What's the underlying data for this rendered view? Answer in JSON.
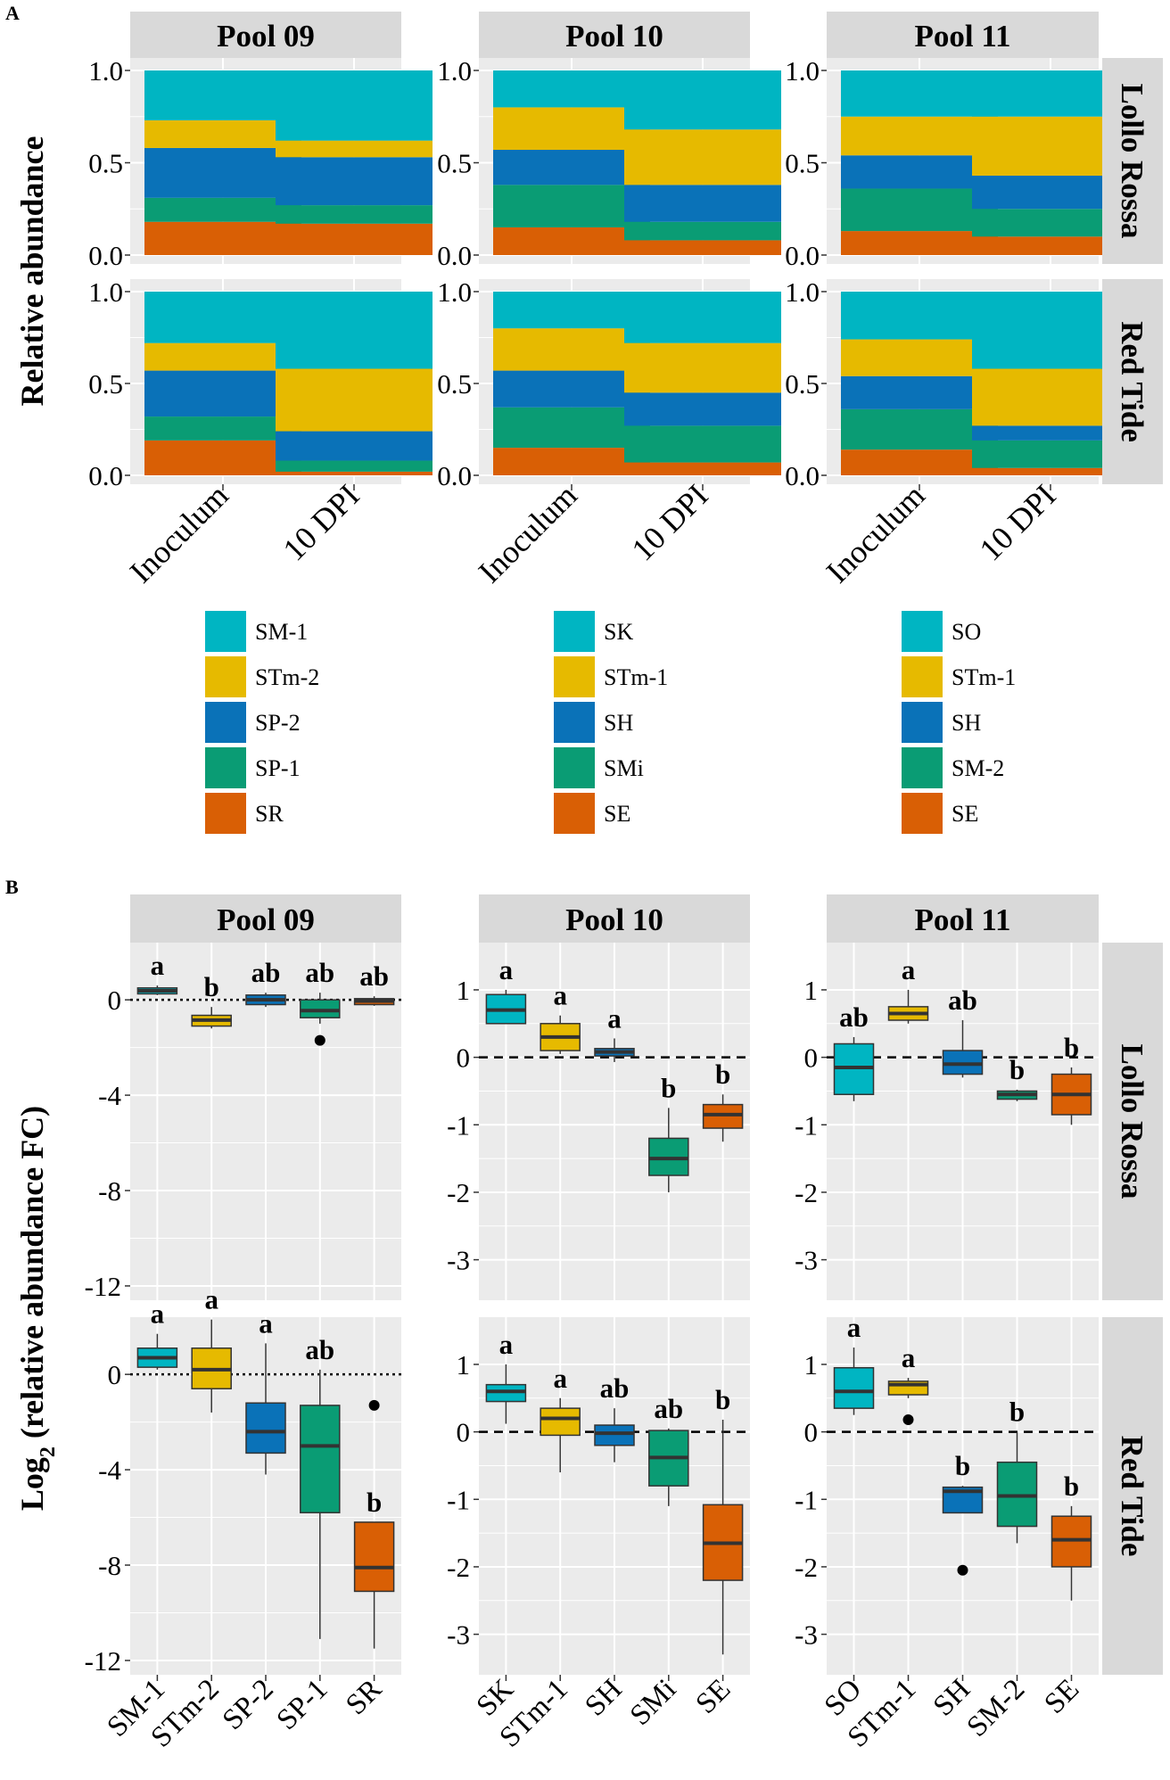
{
  "figure": {
    "panel_a_letter": "A",
    "panel_b_letter": "B"
  },
  "colors": {
    "teal": "#00B5C2",
    "yellow": "#E6BA00",
    "blue": "#0A72B8",
    "green": "#0A9C74",
    "orange": "#D95F05",
    "panel_bg": "#EBEBEB",
    "strip_bg": "#D9D9D9",
    "grid": "#FFFFFF"
  },
  "chart_data": [
    {
      "type": "bar",
      "stacked": true,
      "title": "A",
      "ylabel": "Relative abundance",
      "ylim": [
        0,
        1
      ],
      "yticks": [
        "0.0",
        "0.5",
        "1.0"
      ],
      "categories": [
        "Inoculum",
        "10 DPI"
      ],
      "row_strips": [
        "Lollo Rossa",
        "Red Tide"
      ],
      "pools": [
        {
          "name": "Pool 09",
          "legend": [
            {
              "label": "SM-1",
              "color": "#00B5C2"
            },
            {
              "label": "STm-2",
              "color": "#E6BA00"
            },
            {
              "label": "SP-2",
              "color": "#0A72B8"
            },
            {
              "label": "SP-1",
              "color": "#0A9C74"
            },
            {
              "label": "SR",
              "color": "#D95F05"
            }
          ],
          "rows": [
            {
              "stacks": [
                [
                  0.18,
                  0.13,
                  0.27,
                  0.15,
                  0.27
                ],
                [
                  0.17,
                  0.1,
                  0.26,
                  0.09,
                  0.38
                ]
              ]
            },
            {
              "stacks": [
                [
                  0.19,
                  0.13,
                  0.25,
                  0.15,
                  0.28
                ],
                [
                  0.02,
                  0.06,
                  0.16,
                  0.34,
                  0.42
                ]
              ]
            }
          ]
        },
        {
          "name": "Pool 10",
          "legend": [
            {
              "label": "SK",
              "color": "#00B5C2"
            },
            {
              "label": "STm-1",
              "color": "#E6BA00"
            },
            {
              "label": "SH",
              "color": "#0A72B8"
            },
            {
              "label": "SMi",
              "color": "#0A9C74"
            },
            {
              "label": "SE",
              "color": "#D95F05"
            }
          ],
          "rows": [
            {
              "stacks": [
                [
                  0.15,
                  0.23,
                  0.19,
                  0.23,
                  0.2
                ],
                [
                  0.08,
                  0.1,
                  0.2,
                  0.3,
                  0.32
                ]
              ]
            },
            {
              "stacks": [
                [
                  0.15,
                  0.22,
                  0.2,
                  0.23,
                  0.2
                ],
                [
                  0.07,
                  0.2,
                  0.18,
                  0.27,
                  0.28
                ]
              ]
            }
          ]
        },
        {
          "name": "Pool 11",
          "legend": [
            {
              "label": "SO",
              "color": "#00B5C2"
            },
            {
              "label": "STm-1",
              "color": "#E6BA00"
            },
            {
              "label": "SH",
              "color": "#0A72B8"
            },
            {
              "label": "SM-2",
              "color": "#0A9C74"
            },
            {
              "label": "SE",
              "color": "#D95F05"
            }
          ],
          "rows": [
            {
              "stacks": [
                [
                  0.13,
                  0.23,
                  0.18,
                  0.21,
                  0.25
                ],
                [
                  0.1,
                  0.15,
                  0.18,
                  0.32,
                  0.25
                ]
              ]
            },
            {
              "stacks": [
                [
                  0.14,
                  0.22,
                  0.18,
                  0.2,
                  0.26
                ],
                [
                  0.04,
                  0.15,
                  0.08,
                  0.31,
                  0.42
                ]
              ]
            }
          ]
        }
      ]
    },
    {
      "type": "box",
      "title": "B",
      "ylabel_main": "Log",
      "ylabel_sub": "2",
      "ylabel_rest": " (relative abundance FC)",
      "row_strips": [
        "Lollo Rossa",
        "Red Tide"
      ],
      "pools": [
        {
          "name": "Pool 09",
          "categories": [
            "SM-1",
            "STm-2",
            "SP-2",
            "SP-1",
            "SR"
          ],
          "ylim": [
            -12.6,
            2.4
          ],
          "yticks": [
            "-12",
            "-8",
            "-4",
            "0"
          ],
          "ytick_values": [
            -12,
            -8,
            -4,
            0
          ],
          "ref_line": "dotted",
          "rows": [
            {
              "boxes": [
                {
                  "whiskers": [
                    0.2,
                    0.6
                  ],
                  "q": [
                    0.25,
                    0.38,
                    0.5
                  ],
                  "outliers": [],
                  "label": "a"
                },
                {
                  "whiskers": [
                    -1.2,
                    -0.3
                  ],
                  "q": [
                    -1.1,
                    -0.85,
                    -0.65
                  ],
                  "outliers": [],
                  "label": "b"
                },
                {
                  "whiskers": [
                    -0.3,
                    0.3
                  ],
                  "q": [
                    -0.2,
                    0.0,
                    0.2
                  ],
                  "outliers": [],
                  "label": "ab"
                },
                {
                  "whiskers": [
                    -1.0,
                    0.3
                  ],
                  "q": [
                    -0.75,
                    -0.45,
                    0.0
                  ],
                  "outliers": [
                    -1.7
                  ],
                  "label": "ab"
                },
                {
                  "whiskers": [
                    -0.25,
                    0.15
                  ],
                  "q": [
                    -0.2,
                    -0.05,
                    0.05
                  ],
                  "outliers": [],
                  "label": "ab"
                }
              ]
            },
            {
              "boxes": [
                {
                  "whiskers": [
                    0.2,
                    1.7
                  ],
                  "q": [
                    0.3,
                    0.7,
                    1.1
                  ],
                  "outliers": [],
                  "label": "a"
                },
                {
                  "whiskers": [
                    -1.6,
                    2.3
                  ],
                  "q": [
                    -0.6,
                    0.2,
                    1.1
                  ],
                  "outliers": [],
                  "label": "a"
                },
                {
                  "whiskers": [
                    -4.2,
                    1.3
                  ],
                  "q": [
                    -3.3,
                    -2.4,
                    -1.2
                  ],
                  "outliers": [],
                  "label": "a"
                },
                {
                  "whiskers": [
                    -11.1,
                    0.2
                  ],
                  "q": [
                    -5.8,
                    -3.0,
                    -1.3
                  ],
                  "outliers": [],
                  "label": "ab"
                },
                {
                  "whiskers": [
                    -11.5,
                    -6.2
                  ],
                  "q": [
                    -9.1,
                    -8.1,
                    -6.2
                  ],
                  "outliers": [
                    -1.3
                  ],
                  "label": "b"
                }
              ]
            }
          ]
        },
        {
          "name": "Pool 10",
          "categories": [
            "SK",
            "STm-1",
            "SH",
            "SMi",
            "SE"
          ],
          "ylim": [
            -3.6,
            1.7
          ],
          "yticks": [
            "-3",
            "-2",
            "-1",
            "0",
            "1"
          ],
          "ytick_values": [
            -3,
            -2,
            -1,
            0,
            1
          ],
          "ref_line": "dashed",
          "rows": [
            {
              "boxes": [
                {
                  "whiskers": [
                    0.5,
                    1.0
                  ],
                  "q": [
                    0.5,
                    0.7,
                    0.93
                  ],
                  "outliers": [],
                  "label": "a"
                },
                {
                  "whiskers": [
                    0.05,
                    0.62
                  ],
                  "q": [
                    0.1,
                    0.3,
                    0.5
                  ],
                  "outliers": [],
                  "label": "a"
                },
                {
                  "whiskers": [
                    -0.07,
                    0.28
                  ],
                  "q": [
                    0.02,
                    0.08,
                    0.13
                  ],
                  "outliers": [],
                  "label": "a"
                },
                {
                  "whiskers": [
                    -2.0,
                    -0.75
                  ],
                  "q": [
                    -1.75,
                    -1.5,
                    -1.2
                  ],
                  "outliers": [],
                  "label": "b"
                },
                {
                  "whiskers": [
                    -1.25,
                    -0.55
                  ],
                  "q": [
                    -1.05,
                    -0.85,
                    -0.7
                  ],
                  "outliers": [],
                  "label": "b"
                }
              ]
            },
            {
              "boxes": [
                {
                  "whiskers": [
                    0.12,
                    1.0
                  ],
                  "q": [
                    0.45,
                    0.6,
                    0.7
                  ],
                  "outliers": [],
                  "label": "a"
                },
                {
                  "whiskers": [
                    -0.6,
                    0.5
                  ],
                  "q": [
                    -0.05,
                    0.2,
                    0.35
                  ],
                  "outliers": [],
                  "label": "a"
                },
                {
                  "whiskers": [
                    -0.45,
                    0.35
                  ],
                  "q": [
                    -0.2,
                    -0.02,
                    0.1
                  ],
                  "outliers": [],
                  "label": "ab"
                },
                {
                  "whiskers": [
                    -1.1,
                    0.05
                  ],
                  "q": [
                    -0.8,
                    -0.38,
                    0.02
                  ],
                  "outliers": [],
                  "label": "ab"
                },
                {
                  "whiskers": [
                    -3.3,
                    0.18
                  ],
                  "q": [
                    -2.2,
                    -1.65,
                    -1.08
                  ],
                  "outliers": [],
                  "label": "b"
                }
              ]
            }
          ]
        },
        {
          "name": "Pool 11",
          "categories": [
            "SO",
            "STm-1",
            "SH",
            "SM-2",
            "SE"
          ],
          "ylim": [
            -3.6,
            1.7
          ],
          "yticks": [
            "-3",
            "-2",
            "-1",
            "0",
            "1"
          ],
          "ytick_values": [
            -3,
            -2,
            -1,
            0,
            1
          ],
          "ref_line": "dashed",
          "rows": [
            {
              "boxes": [
                {
                  "whiskers": [
                    -0.65,
                    0.3
                  ],
                  "q": [
                    -0.55,
                    -0.15,
                    0.2
                  ],
                  "outliers": [],
                  "label": "ab"
                },
                {
                  "whiskers": [
                    0.5,
                    1.0
                  ],
                  "q": [
                    0.55,
                    0.65,
                    0.75
                  ],
                  "outliers": [],
                  "label": "a"
                },
                {
                  "whiskers": [
                    -0.3,
                    0.55
                  ],
                  "q": [
                    -0.25,
                    -0.1,
                    0.1
                  ],
                  "outliers": [],
                  "label": "ab"
                },
                {
                  "whiskers": [
                    -0.65,
                    -0.48
                  ],
                  "q": [
                    -0.62,
                    -0.55,
                    -0.5
                  ],
                  "outliers": [],
                  "label": "b"
                },
                {
                  "whiskers": [
                    -1.0,
                    -0.15
                  ],
                  "q": [
                    -0.85,
                    -0.55,
                    -0.25
                  ],
                  "outliers": [],
                  "label": "b"
                }
              ]
            },
            {
              "boxes": [
                {
                  "whiskers": [
                    0.25,
                    1.25
                  ],
                  "q": [
                    0.35,
                    0.6,
                    0.95
                  ],
                  "outliers": [],
                  "label": "a"
                },
                {
                  "whiskers": [
                    0.5,
                    0.8
                  ],
                  "q": [
                    0.55,
                    0.7,
                    0.75
                  ],
                  "outliers": [
                    0.18
                  ],
                  "label": "a"
                },
                {
                  "whiskers": [
                    -1.2,
                    -0.8
                  ],
                  "q": [
                    -1.2,
                    -0.88,
                    -0.82
                  ],
                  "outliers": [
                    -2.05
                  ],
                  "label": "b"
                },
                {
                  "whiskers": [
                    -1.65,
                    0.0
                  ],
                  "q": [
                    -1.4,
                    -0.95,
                    -0.45
                  ],
                  "outliers": [],
                  "label": "b"
                },
                {
                  "whiskers": [
                    -2.5,
                    -1.1
                  ],
                  "q": [
                    -2.0,
                    -1.6,
                    -1.25
                  ],
                  "outliers": [],
                  "label": "b"
                }
              ]
            }
          ]
        }
      ]
    }
  ]
}
